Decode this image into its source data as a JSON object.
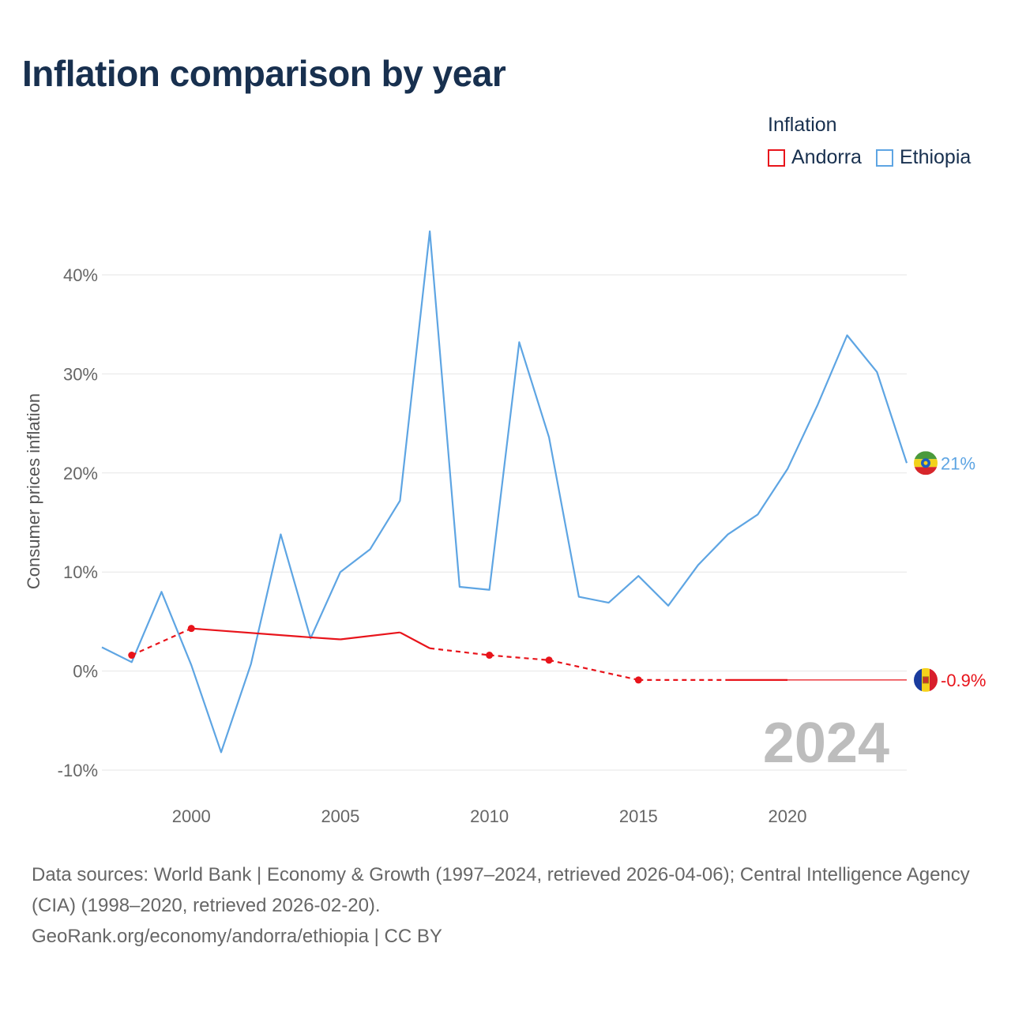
{
  "title": "Inflation comparison by year",
  "legend": {
    "title": "Inflation",
    "items": [
      {
        "label": "Andorra",
        "color": "#e8141b"
      },
      {
        "label": "Ethiopia",
        "color": "#5ea5e3"
      }
    ]
  },
  "chart_data": {
    "type": "line",
    "ylabel": "Consumer prices inflation",
    "xlim": [
      1997,
      2024
    ],
    "ylim": [
      -10,
      45
    ],
    "yticks": [
      -10,
      0,
      10,
      20,
      30,
      40
    ],
    "ytick_labels": [
      "-10%",
      "0%",
      "10%",
      "20%",
      "30%",
      "40%"
    ],
    "xticks": [
      2000,
      2005,
      2010,
      2015,
      2020
    ],
    "xtick_labels": [
      "2000",
      "2005",
      "2010",
      "2015",
      "2020"
    ],
    "current_year": "2024",
    "series": [
      {
        "name": "Ethiopia",
        "color": "#5ea5e3",
        "end_label": "21%",
        "flag": "ethiopia-flag-icon",
        "points": [
          [
            1997,
            2.4
          ],
          [
            1998,
            0.9
          ],
          [
            1999,
            8.0
          ],
          [
            2000,
            0.6
          ],
          [
            2001,
            -8.2
          ],
          [
            2002,
            0.7
          ],
          [
            2003,
            13.8
          ],
          [
            2004,
            3.3
          ],
          [
            2005,
            10.0
          ],
          [
            2006,
            12.3
          ],
          [
            2007,
            17.2
          ],
          [
            2008,
            44.4
          ],
          [
            2009,
            8.5
          ],
          [
            2010,
            8.2
          ],
          [
            2011,
            33.2
          ],
          [
            2012,
            23.6
          ],
          [
            2013,
            7.5
          ],
          [
            2014,
            6.9
          ],
          [
            2015,
            9.6
          ],
          [
            2016,
            6.6
          ],
          [
            2017,
            10.7
          ],
          [
            2018,
            13.8
          ],
          [
            2019,
            15.8
          ],
          [
            2020,
            20.4
          ],
          [
            2021,
            26.8
          ],
          [
            2022,
            33.9
          ],
          [
            2023,
            30.2
          ],
          [
            2024,
            21.0
          ]
        ]
      },
      {
        "name": "Andorra",
        "color": "#e8141b",
        "end_label": "-0.9%",
        "flag": "andorra-flag-icon",
        "points": [
          [
            1998,
            1.6
          ],
          [
            2000,
            4.3
          ],
          [
            2004,
            3.4
          ],
          [
            2005,
            3.2
          ],
          [
            2007,
            3.9
          ],
          [
            2008,
            2.3
          ],
          [
            2010,
            1.6
          ],
          [
            2012,
            1.1
          ],
          [
            2015,
            -0.9
          ],
          [
            2018,
            -0.9
          ],
          [
            2020,
            -0.9
          ],
          [
            2024,
            -0.9
          ]
        ],
        "markers": [
          1998,
          2000,
          2010,
          2012,
          2015
        ],
        "segment_styles": [
          "dashed",
          "solid",
          "solid",
          "solid",
          "solid",
          "dashed",
          "dashed",
          "dashed",
          "dashed",
          "solid",
          "thin"
        ]
      }
    ]
  },
  "sources": "Data sources: World Bank | Economy & Growth (1997–2024, retrieved 2026-04-06); Central Intelligence Agency (CIA) (1998–2020, retrieved 2026-02-20).",
  "credit": "GeoRank.org/economy/andorra/ethiopia | CC BY"
}
